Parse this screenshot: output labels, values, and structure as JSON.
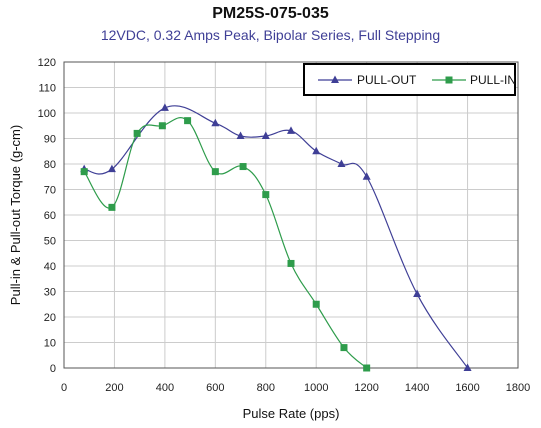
{
  "chart_data": {
    "type": "line",
    "title": "PM25S-075-035",
    "subtitle": "12VDC,  0.32 Amps Peak, Bipolar Series, Full Stepping",
    "xlabel": "Pulse Rate (pps)",
    "ylabel": "Pull-in & Pull-out Torque (g-cm)",
    "xlim": [
      0,
      1800
    ],
    "ylim": [
      0,
      120
    ],
    "xticks": [
      0,
      200,
      400,
      600,
      800,
      1000,
      1200,
      1400,
      1600,
      1800
    ],
    "yticks": [
      0,
      10,
      20,
      30,
      40,
      50,
      60,
      70,
      80,
      90,
      100,
      110,
      120
    ],
    "grid": true,
    "legend_position": "top-right",
    "series": [
      {
        "name": "PULL-OUT",
        "color": "#3f3f96",
        "marker": "triangle",
        "x": [
          80,
          190,
          400,
          600,
          700,
          800,
          900,
          1000,
          1100,
          1200,
          1400,
          1600
        ],
        "y": [
          78,
          78,
          102,
          96,
          91,
          91,
          93,
          85,
          80,
          75,
          29,
          0
        ]
      },
      {
        "name": "PULL-IN",
        "color": "#2e9c4b",
        "marker": "square",
        "x": [
          80,
          190,
          290,
          390,
          490,
          600,
          710,
          800,
          900,
          1000,
          1110,
          1200
        ],
        "y": [
          77,
          63,
          92,
          95,
          97,
          77,
          79,
          68,
          41,
          25,
          8,
          0
        ]
      }
    ]
  }
}
